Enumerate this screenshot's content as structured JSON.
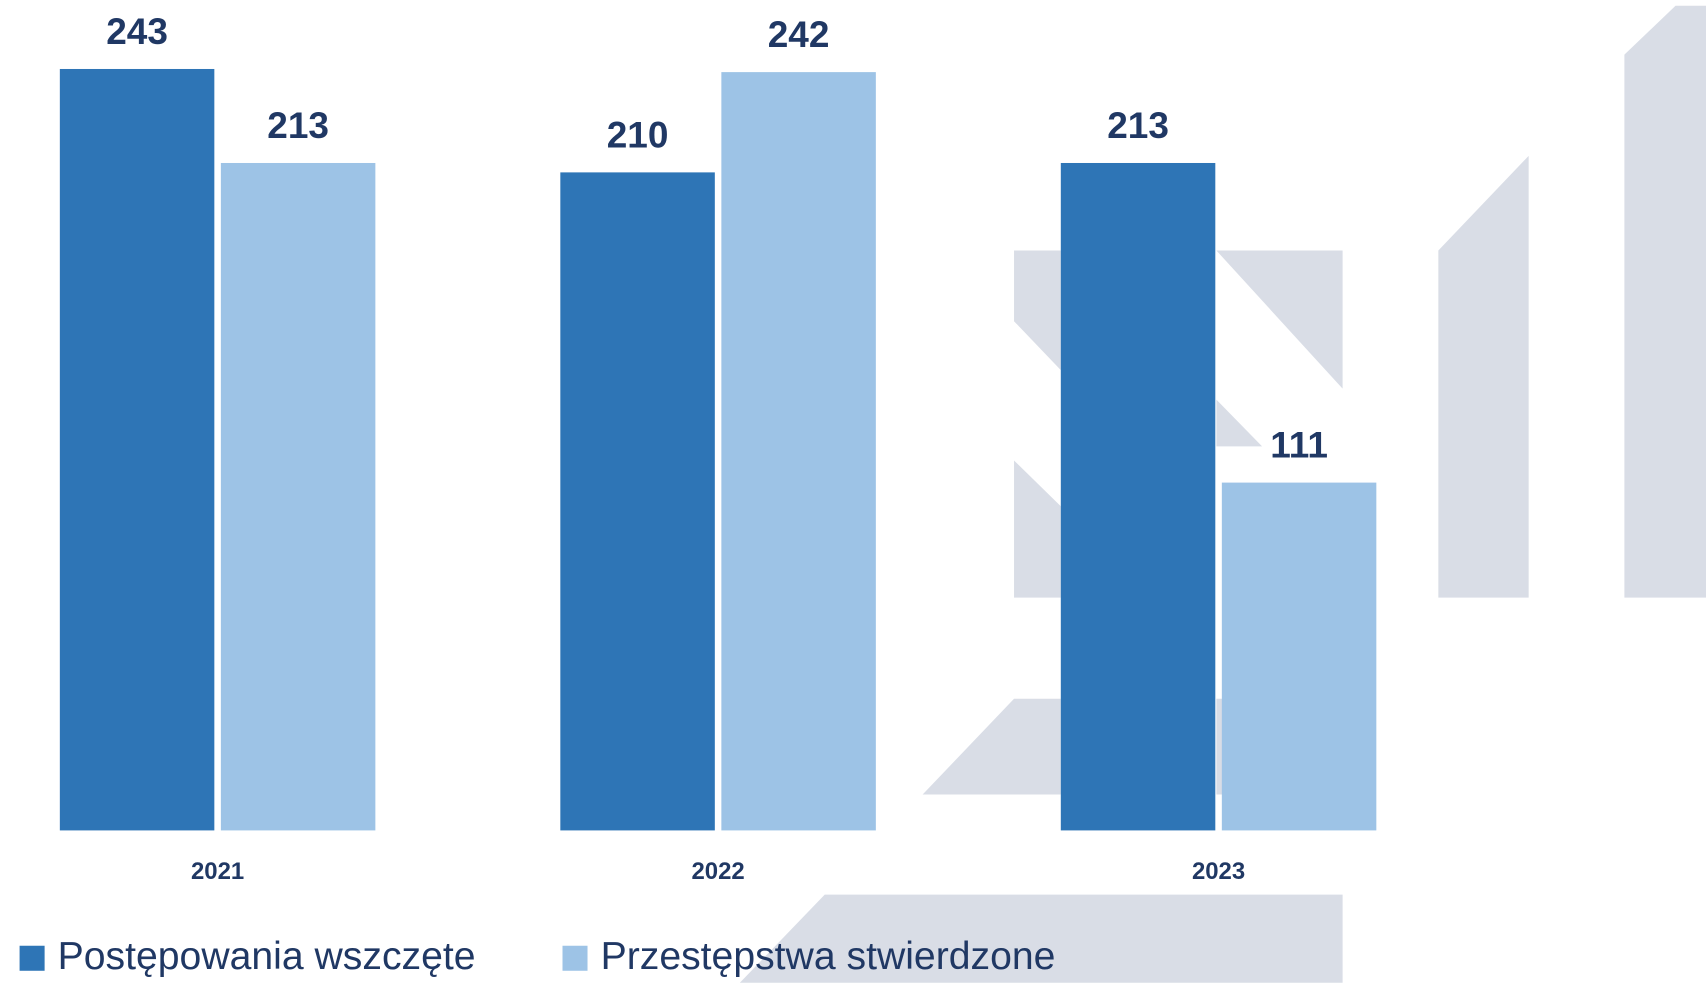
{
  "chart_data": {
    "type": "bar",
    "categories": [
      "2021",
      "2022",
      "2023"
    ],
    "series": [
      {
        "name": "Postępowania wszczęte",
        "color": "#2e75b6",
        "values": [
          243,
          210,
          213
        ]
      },
      {
        "name": "Przestępstwa stwierdzone",
        "color": "#9dc3e6",
        "values": [
          213,
          242,
          111
        ]
      }
    ],
    "ylim": [
      0,
      260
    ]
  }
}
